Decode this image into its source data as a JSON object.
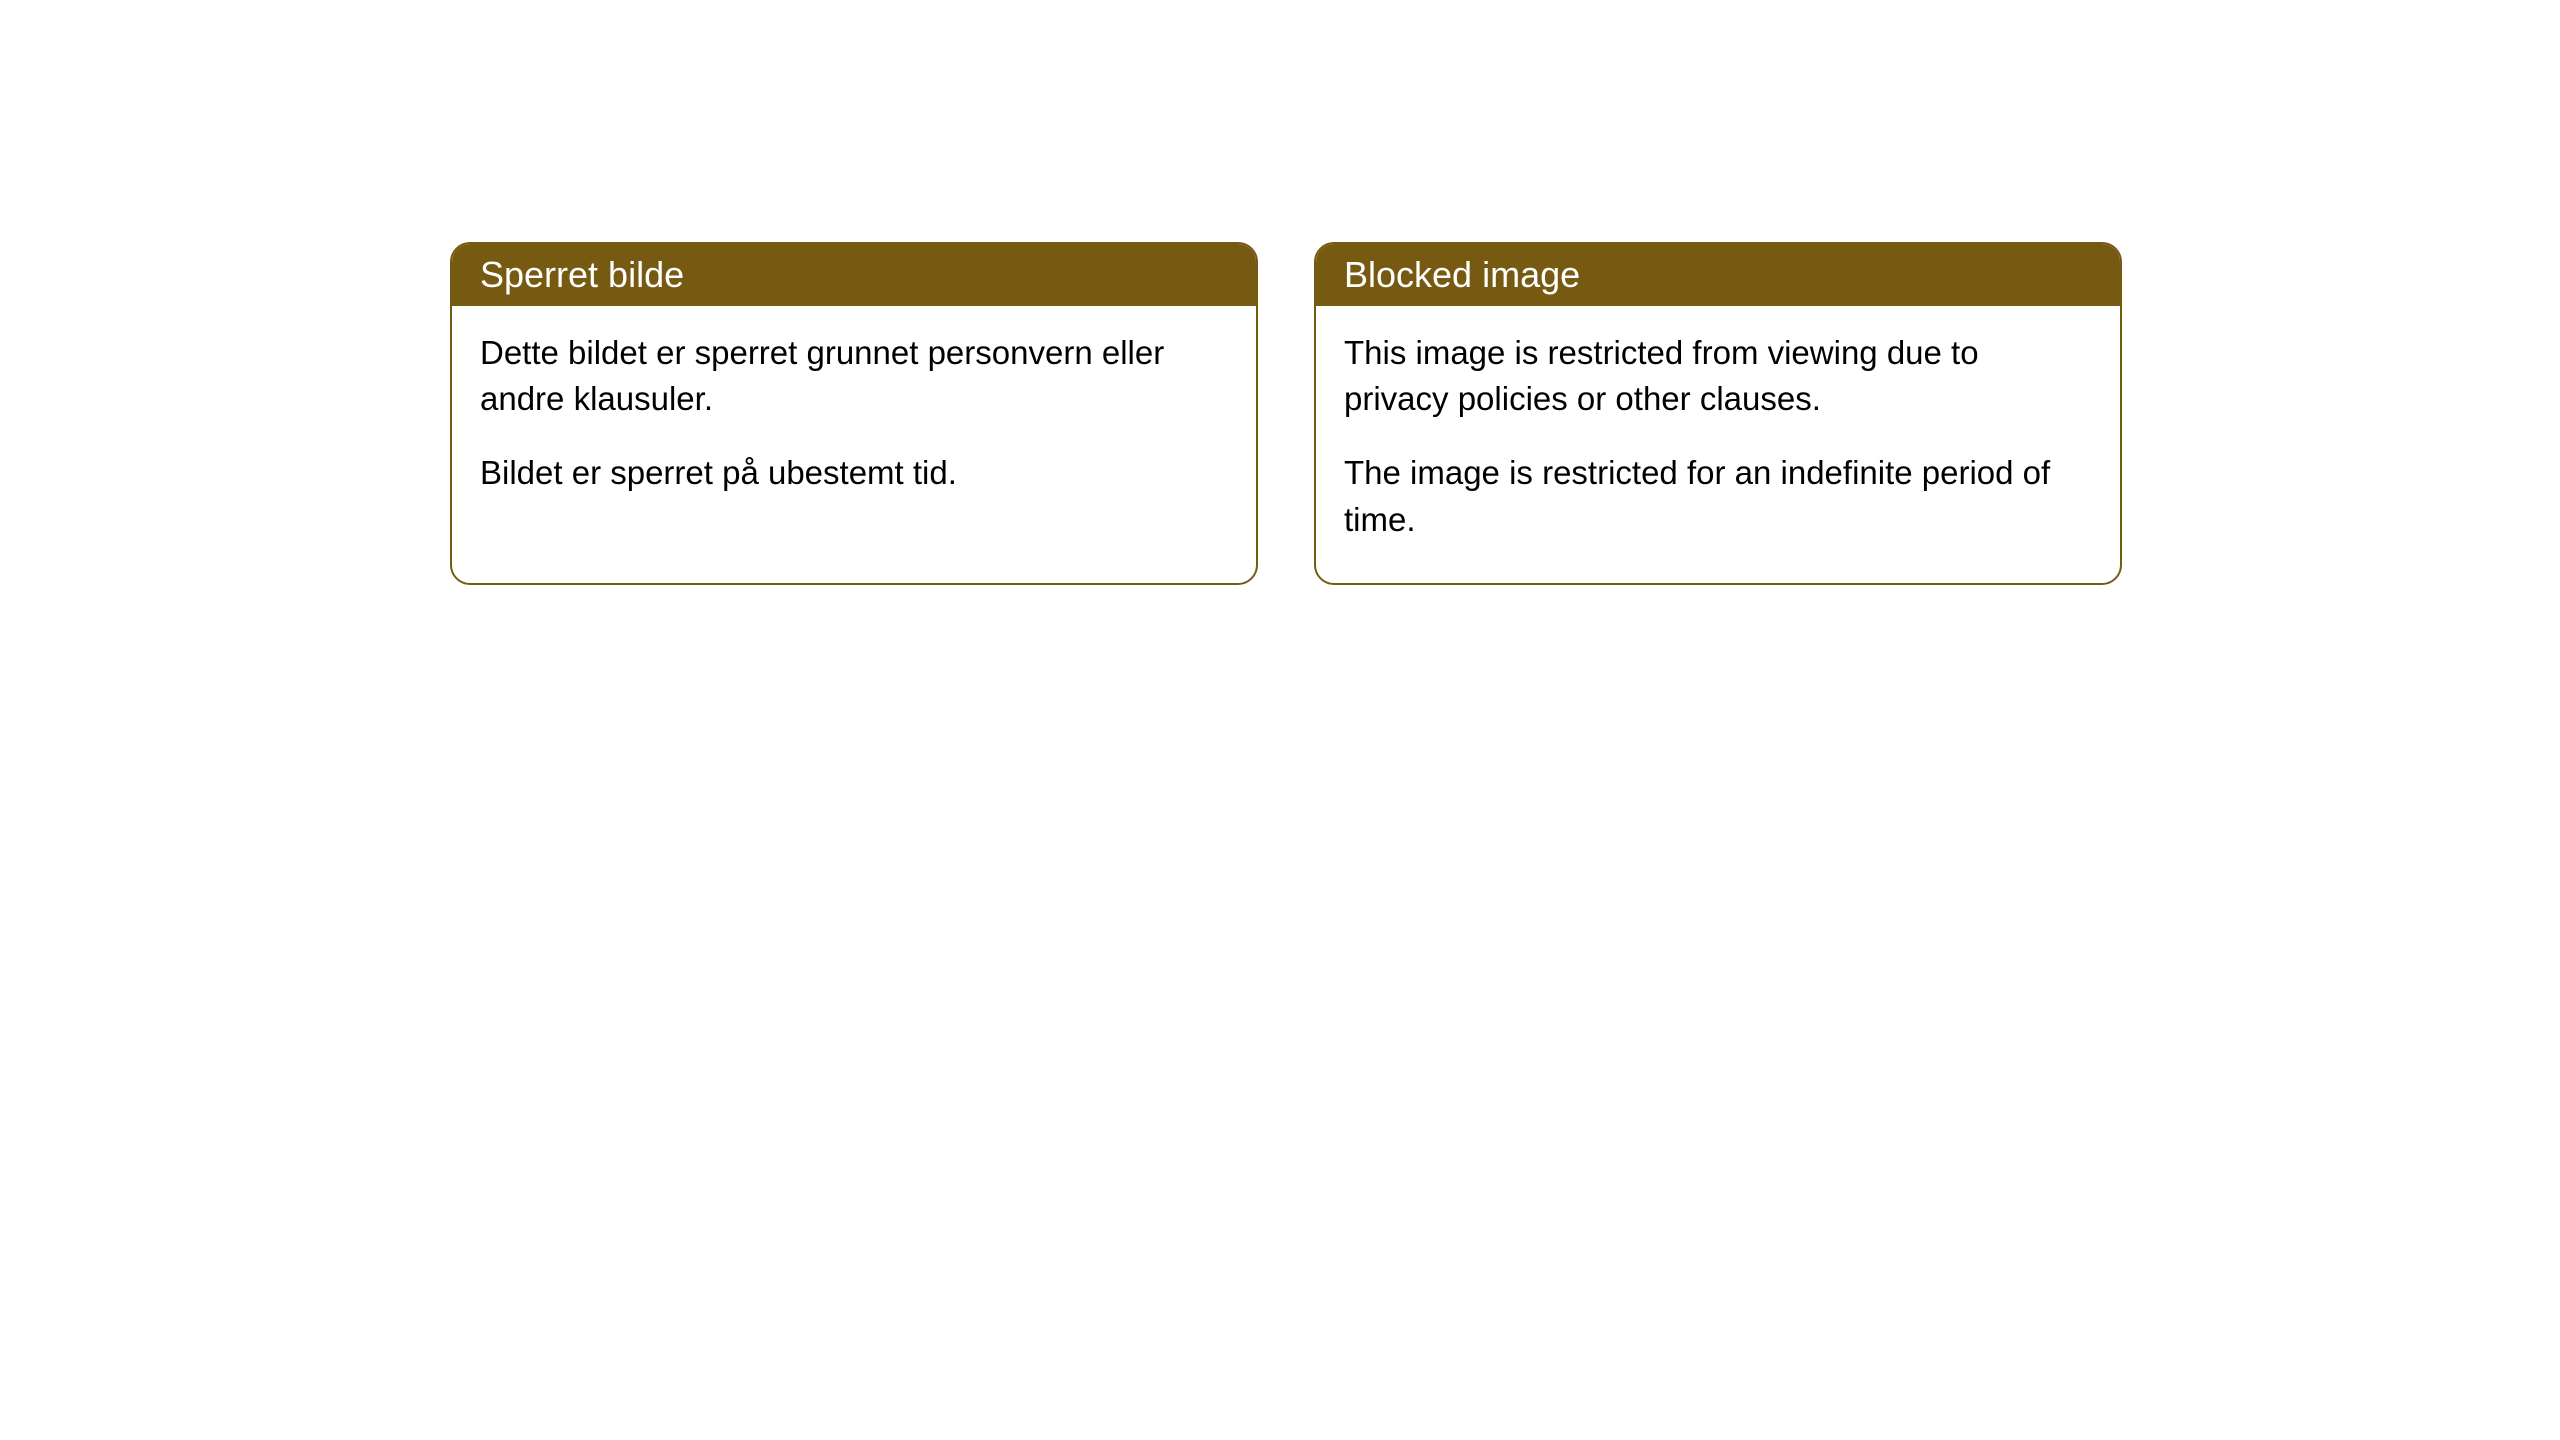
{
  "cards": [
    {
      "title": "Sperret bilde",
      "paragraph1": "Dette bildet er sperret grunnet personvern eller andre klausuler.",
      "paragraph2": "Bildet er sperret på ubestemt tid."
    },
    {
      "title": "Blocked image",
      "paragraph1": "This image is restricted from viewing due to privacy policies or other clauses.",
      "paragraph2": "The image is restricted for an indefinite period of time."
    }
  ],
  "styling": {
    "header_background": "#775a12",
    "header_text_color": "#ffffff",
    "border_color": "#775a12",
    "body_background": "#ffffff",
    "body_text_color": "#000000",
    "border_radius": 20,
    "header_fontsize": 36,
    "body_fontsize": 33
  }
}
